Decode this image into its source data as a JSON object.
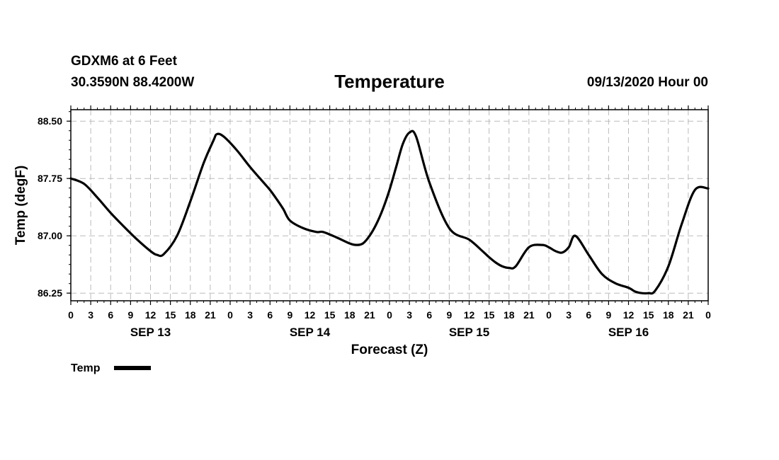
{
  "header": {
    "station": "GDXM6 at 6 Feet",
    "coordinates": "30.3590N 88.4200W",
    "title": "Temperature",
    "run": "09/13/2020 Hour 00"
  },
  "chart_data": {
    "type": "line",
    "title": "Temperature",
    "xlabel": "Forecast (Z)",
    "ylabel": "Temp (degF)",
    "xlim": [
      0,
      96
    ],
    "ylim": [
      86.15,
      88.65
    ],
    "yticks": [
      86.25,
      87.0,
      87.75,
      88.5
    ],
    "ytick_labels": [
      "86.25",
      "87.00",
      "87.75",
      "88.50"
    ],
    "xticks": [
      0,
      3,
      6,
      9,
      12,
      15,
      18,
      21,
      24,
      27,
      30,
      33,
      36,
      39,
      42,
      45,
      48,
      51,
      54,
      57,
      60,
      63,
      66,
      69,
      72,
      75,
      78,
      81,
      84,
      87,
      90,
      93,
      96
    ],
    "xtick_labels": [
      "0",
      "3",
      "6",
      "9",
      "12",
      "15",
      "18",
      "21",
      "0",
      "3",
      "6",
      "9",
      "12",
      "15",
      "18",
      "21",
      "0",
      "3",
      "6",
      "9",
      "12",
      "15",
      "18",
      "21",
      "0",
      "3",
      "6",
      "9",
      "12",
      "15",
      "18",
      "21",
      "0"
    ],
    "day_labels": [
      {
        "label": "SEP 13",
        "at": 12
      },
      {
        "label": "SEP 14",
        "at": 36
      },
      {
        "label": "SEP 15",
        "at": 60
      },
      {
        "label": "SEP 16",
        "at": 84
      }
    ],
    "grid": true,
    "series": [
      {
        "name": "Temp",
        "color": "#000000",
        "x": [
          0,
          2,
          4,
          6,
          8,
          10,
          12,
          13,
          14,
          16,
          18,
          20,
          21.5,
          22,
          23,
          25,
          27,
          29,
          30,
          31,
          32,
          33,
          35,
          37,
          38,
          40,
          42,
          43,
          44,
          45,
          46,
          47,
          48,
          49,
          50,
          51,
          52,
          54,
          57,
          60,
          62,
          63,
          64,
          65,
          66,
          67,
          69,
          71,
          72,
          73,
          74,
          75,
          76,
          78,
          80,
          82,
          84,
          85,
          86,
          87,
          88,
          90,
          92,
          94,
          96
        ],
        "values": [
          87.75,
          87.68,
          87.5,
          87.3,
          87.12,
          86.95,
          86.8,
          86.75,
          86.76,
          87.0,
          87.45,
          87.95,
          88.25,
          88.33,
          88.3,
          88.12,
          87.9,
          87.7,
          87.6,
          87.48,
          87.35,
          87.2,
          87.1,
          87.05,
          87.05,
          86.98,
          86.9,
          86.88,
          86.9,
          87.0,
          87.15,
          87.35,
          87.6,
          87.9,
          88.2,
          88.35,
          88.3,
          87.7,
          87.1,
          86.95,
          86.8,
          86.72,
          86.65,
          86.6,
          86.58,
          86.6,
          86.85,
          86.88,
          86.85,
          86.8,
          86.78,
          86.85,
          87.0,
          86.75,
          86.5,
          86.38,
          86.32,
          86.27,
          86.25,
          86.25,
          86.28,
          86.6,
          87.15,
          87.6,
          87.62
        ]
      }
    ],
    "legend": {
      "label": "Temp",
      "placement": "bottom-left"
    }
  }
}
